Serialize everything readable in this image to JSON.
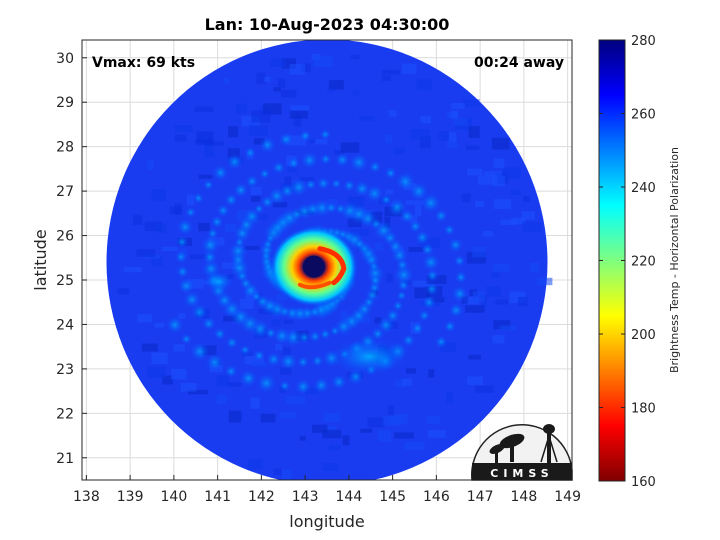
{
  "chart_data": {
    "type": "heatmap",
    "title": "Lan: 10-Aug-2023 04:30:00",
    "xlabel": "longitude",
    "ylabel": "latitude",
    "xlim": [
      137.9,
      149.1
    ],
    "ylim": [
      20.5,
      30.4
    ],
    "xticks": [
      "138",
      "139",
      "140",
      "141",
      "142",
      "143",
      "144",
      "145",
      "146",
      "147",
      "148",
      "149"
    ],
    "yticks": [
      "21",
      "22",
      "23",
      "24",
      "25",
      "26",
      "27",
      "28",
      "29",
      "30"
    ],
    "grid": true,
    "annotations": {
      "vmax": "Vmax: 69 kts",
      "time_away": "00:24 away"
    },
    "storm_center": {
      "lon": 143.2,
      "lat": 25.3
    },
    "swath": {
      "center_lon": 143.5,
      "center_lat": 25.4,
      "radius_deg": 5.6
    },
    "colorbar": {
      "label": "Brightness Temp - Horizontal Polarization",
      "range": [
        160,
        280
      ],
      "ticks": [
        "160",
        "180",
        "200",
        "220",
        "240",
        "260",
        "280"
      ],
      "colormap": "jet"
    },
    "logo": "CIMSS"
  }
}
